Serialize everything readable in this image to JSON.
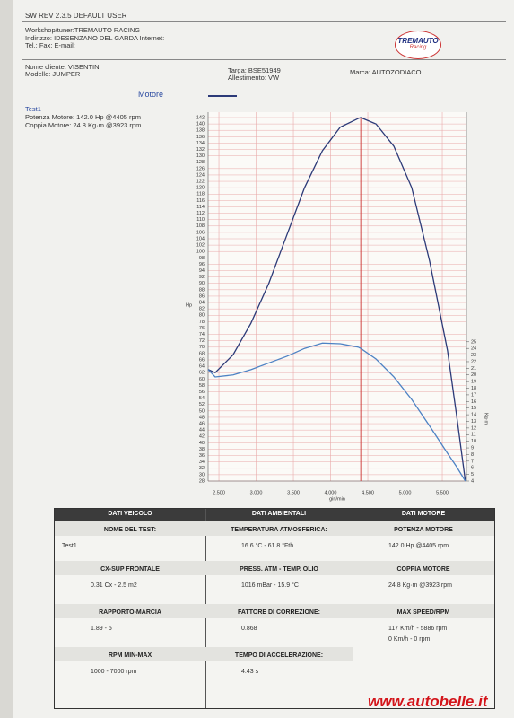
{
  "header": {
    "software": "SW REV 2.3.5   DEFAULT USER",
    "workshop": "Workshop/tuner:TREMAUTO RACING",
    "address": "Indirizzo: IDESENZANO DEL GARDA Internet:",
    "contacts": "Tel.:  Fax:  E-mail:",
    "logo": "TREMAUTO",
    "logo_sub": "Racing"
  },
  "vehicle": {
    "client": "Nome cliente: VISENTINI",
    "model": "Modello: JUMPER",
    "plate": "Targa: BSE51949",
    "trim": "Allestimento: VW",
    "brand": "Marca: AUTOZODIACO"
  },
  "chart_data": {
    "type": "line",
    "legend_title": "Motore",
    "subtitle": "Test1",
    "y_label": "Hp",
    "y2_label": "Kg·m",
    "x_label": "giri/min",
    "x": [
      2355,
      2450,
      2690,
      2930,
      3170,
      3410,
      3650,
      3890,
      4130,
      4370,
      4405,
      4610,
      4850,
      5090,
      5330,
      5570,
      5690,
      5810
    ],
    "series": [
      {
        "name": "Potenza Motore: 142.0 Hp @4405 rpm",
        "color": "#2c3a78",
        "values": [
          63,
          62,
          67.6,
          77.5,
          90,
          105,
          120,
          131.6,
          139,
          141.7,
          142,
          140,
          133,
          120,
          97,
          69,
          49,
          28
        ]
      },
      {
        "name": "Coppia Motore: 24.8 Kg·m @3923 rpm",
        "color": "#4d82c4",
        "axis": "y2",
        "values": [
          20.8,
          19.7,
          20,
          20.8,
          21.8,
          22.8,
          24,
          24.8,
          24.7,
          24.2,
          24,
          22.4,
          19.7,
          16.3,
          12.3,
          8.2,
          6.2,
          4
        ]
      }
    ],
    "vline": 4405,
    "vline_color": "#cc3333",
    "grid": true,
    "grid_color": "#e9a9a9",
    "xlim": [
      2355,
      5825
    ],
    "ylim": [
      28,
      142
    ],
    "y2lim": [
      4,
      58.8
    ],
    "xticks": [
      {
        "value": 2500,
        "label": "2.500"
      },
      {
        "value": 3000,
        "label": "3.000"
      },
      {
        "value": 3500,
        "label": "3.500"
      },
      {
        "value": 4000,
        "label": "4.000"
      },
      {
        "value": 4500,
        "label": "4.500"
      },
      {
        "value": 5000,
        "label": "5.000"
      },
      {
        "value": 5500,
        "label": "5.500"
      }
    ],
    "yticks": [
      28,
      30,
      32,
      34,
      36,
      38,
      40,
      42,
      44,
      46,
      48,
      50,
      52,
      54,
      56,
      58,
      60,
      62,
      64,
      66,
      68,
      70,
      72,
      74,
      76,
      78,
      80,
      82,
      84,
      86,
      88,
      90,
      92,
      94,
      96,
      98,
      100,
      102,
      104,
      106,
      108,
      110,
      112,
      114,
      116,
      118,
      120,
      122,
      124,
      126,
      128,
      130,
      132,
      134,
      136,
      138,
      140,
      142
    ],
    "y2ticks": [
      4,
      5,
      6,
      7,
      8,
      9,
      10,
      11,
      12,
      13,
      14,
      15,
      16,
      17,
      18,
      19,
      20,
      21,
      22,
      23,
      24,
      25
    ]
  },
  "table": {
    "columns": [
      {
        "title": "DATI VEICOLO",
        "items": [
          {
            "label": "NOME DEL TEST:",
            "value": "Test1"
          },
          {
            "label": "CX-SUP FRONTALE",
            "value": "0.31 Cx - 2.5 m2"
          },
          {
            "label": "RAPPORTO-MARCIA",
            "value": "1.89 - 5"
          },
          {
            "label": "RPM MIN-MAX",
            "value": "1000 - 7000 rpm"
          }
        ]
      },
      {
        "title": "DATI AMBIENTALI",
        "items": [
          {
            "label": "TEMPERATURA ATMOSFERICA:",
            "value": "16.6 °C - 61.8 °Fth"
          },
          {
            "label": "PRESS. ATM - TEMP. OLIO",
            "value": "1016 mBar - 15.9 °C"
          },
          {
            "label": "FATTORE DI CORREZIONE:",
            "value": "0.868"
          },
          {
            "label": "TEMPO DI ACCELERAZIONE:",
            "value": "4.43 s"
          }
        ]
      },
      {
        "title": "DATI MOTORE",
        "items": [
          {
            "label": "POTENZA MOTORE",
            "value": "142.0  Hp  @4405 rpm"
          },
          {
            "label": "COPPIA MOTORE",
            "value": "24.8  Kg·m  @3923 rpm"
          },
          {
            "label": "MAX SPEED/RPM",
            "value": [
              "117 Km/h - 5886 rpm",
              "0 Km/h - 0 rpm"
            ]
          }
        ]
      }
    ]
  },
  "watermark": "www.autobelle.it"
}
